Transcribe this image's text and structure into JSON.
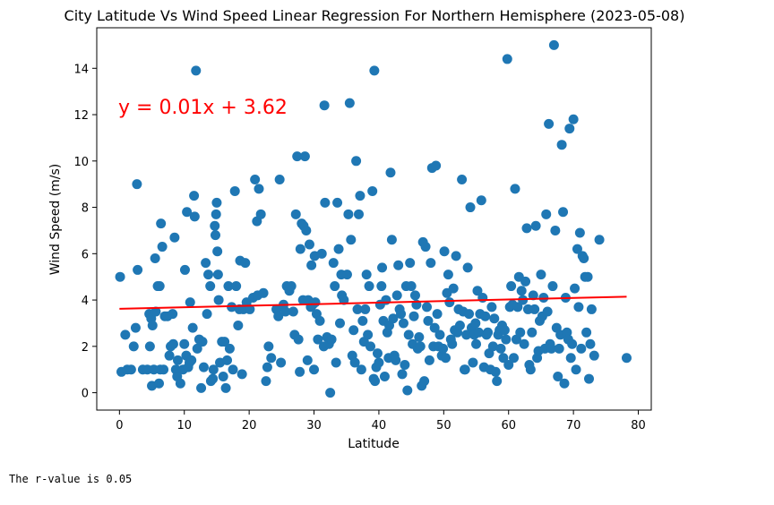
{
  "chart_data": {
    "type": "scatter",
    "title": "City Latitude Vs Wind Speed Linear Regression For Northern Hemisphere (2023-05-08)",
    "xlabel": "Latitude",
    "ylabel": "Wind Speed (m/s)",
    "xlim": [
      -3.5,
      82
    ],
    "ylim": [
      -0.75,
      15.75
    ],
    "x_ticks": [
      0,
      10,
      20,
      30,
      40,
      50,
      60,
      70,
      80
    ],
    "y_ticks": [
      0,
      2,
      4,
      6,
      8,
      10,
      12,
      14
    ],
    "grid": false,
    "point_color": "#1f77b4",
    "line_color": "#ff0000",
    "regression": {
      "equation": "y = 0.01x + 3.62",
      "slope": 0.0067,
      "intercept": 3.62,
      "x_range": [
        0,
        78.2
      ]
    },
    "points": [
      [
        0.1,
        5.0
      ],
      [
        0.3,
        0.9
      ],
      [
        0.9,
        2.5
      ],
      [
        1.2,
        1.0
      ],
      [
        1.8,
        1.0
      ],
      [
        2.2,
        2.0
      ],
      [
        2.5,
        2.8
      ],
      [
        2.7,
        9.0
      ],
      [
        2.8,
        5.3
      ],
      [
        3.6,
        1.0
      ],
      [
        4.3,
        1.0
      ],
      [
        4.6,
        3.4
      ],
      [
        4.7,
        2.0
      ],
      [
        4.9,
        3.2
      ],
      [
        5.0,
        0.3
      ],
      [
        5.1,
        2.9
      ],
      [
        5.3,
        1.0
      ],
      [
        5.5,
        5.8
      ],
      [
        5.6,
        3.5
      ],
      [
        5.9,
        4.6
      ],
      [
        6.1,
        0.4
      ],
      [
        6.2,
        4.6
      ],
      [
        6.3,
        1.0
      ],
      [
        6.4,
        7.3
      ],
      [
        6.6,
        6.3
      ],
      [
        6.8,
        1.0
      ],
      [
        7.0,
        3.3
      ],
      [
        7.4,
        3.3
      ],
      [
        7.7,
        1.6
      ],
      [
        7.9,
        2.0
      ],
      [
        8.2,
        3.4
      ],
      [
        8.3,
        2.1
      ],
      [
        8.5,
        6.7
      ],
      [
        8.7,
        1.0
      ],
      [
        8.9,
        0.7
      ],
      [
        9.0,
        1.4
      ],
      [
        9.4,
        0.4
      ],
      [
        9.8,
        1.0
      ],
      [
        10.0,
        2.1
      ],
      [
        10.1,
        5.3
      ],
      [
        10.3,
        1.6
      ],
      [
        10.4,
        7.8
      ],
      [
        10.6,
        1.1
      ],
      [
        10.8,
        1.3
      ],
      [
        10.9,
        3.9
      ],
      [
        11.1,
        1.4
      ],
      [
        11.3,
        2.8
      ],
      [
        11.5,
        8.5
      ],
      [
        11.6,
        7.6
      ],
      [
        11.8,
        13.9
      ],
      [
        12.0,
        1.9
      ],
      [
        12.3,
        2.3
      ],
      [
        12.6,
        0.2
      ],
      [
        12.8,
        2.2
      ],
      [
        13.0,
        1.1
      ],
      [
        13.3,
        5.6
      ],
      [
        13.5,
        3.4
      ],
      [
        13.7,
        5.1
      ],
      [
        14.0,
        4.6
      ],
      [
        14.1,
        0.5
      ],
      [
        14.4,
        0.6
      ],
      [
        14.5,
        1.0
      ],
      [
        14.7,
        7.2
      ],
      [
        14.8,
        6.8
      ],
      [
        14.9,
        7.7
      ],
      [
        15.0,
        8.2
      ],
      [
        15.1,
        6.1
      ],
      [
        15.2,
        5.1
      ],
      [
        15.3,
        4.0
      ],
      [
        15.5,
        1.3
      ],
      [
        15.8,
        2.2
      ],
      [
        16.0,
        0.7
      ],
      [
        16.2,
        2.2
      ],
      [
        16.4,
        0.2
      ],
      [
        16.6,
        1.4
      ],
      [
        16.8,
        4.6
      ],
      [
        17.0,
        1.9
      ],
      [
        17.3,
        3.7
      ],
      [
        17.5,
        1.0
      ],
      [
        17.8,
        8.7
      ],
      [
        18.0,
        4.6
      ],
      [
        18.3,
        2.9
      ],
      [
        18.5,
        3.6
      ],
      [
        18.6,
        5.7
      ],
      [
        18.9,
        0.8
      ],
      [
        19.1,
        3.6
      ],
      [
        19.4,
        5.6
      ],
      [
        19.6,
        3.9
      ],
      [
        20.1,
        3.6
      ],
      [
        20.6,
        4.1
      ],
      [
        20.9,
        9.2
      ],
      [
        21.2,
        7.4
      ],
      [
        21.3,
        4.2
      ],
      [
        21.5,
        8.8
      ],
      [
        21.8,
        7.7
      ],
      [
        22.2,
        4.3
      ],
      [
        22.6,
        0.5
      ],
      [
        22.8,
        1.1
      ],
      [
        23.0,
        2.0
      ],
      [
        23.4,
        1.5
      ],
      [
        24.2,
        3.6
      ],
      [
        24.5,
        3.3
      ],
      [
        24.7,
        9.2
      ],
      [
        24.9,
        1.3
      ],
      [
        25.3,
        3.8
      ],
      [
        25.6,
        3.5
      ],
      [
        25.8,
        4.6
      ],
      [
        26.2,
        4.4
      ],
      [
        26.5,
        4.6
      ],
      [
        26.8,
        3.5
      ],
      [
        27.0,
        2.5
      ],
      [
        27.2,
        7.7
      ],
      [
        27.4,
        10.2
      ],
      [
        27.6,
        2.3
      ],
      [
        27.8,
        0.9
      ],
      [
        27.9,
        6.2
      ],
      [
        28.1,
        7.3
      ],
      [
        28.3,
        4.0
      ],
      [
        28.4,
        7.2
      ],
      [
        28.6,
        10.2
      ],
      [
        28.8,
        7.0
      ],
      [
        29.0,
        1.4
      ],
      [
        29.1,
        4.0
      ],
      [
        29.3,
        6.4
      ],
      [
        29.5,
        3.7
      ],
      [
        29.6,
        5.5
      ],
      [
        29.8,
        3.8
      ],
      [
        30.0,
        1.0
      ],
      [
        30.1,
        5.9
      ],
      [
        30.2,
        3.9
      ],
      [
        30.4,
        3.4
      ],
      [
        30.6,
        2.3
      ],
      [
        30.9,
        3.1
      ],
      [
        31.2,
        6.0
      ],
      [
        31.5,
        2.0
      ],
      [
        31.6,
        12.4
      ],
      [
        31.7,
        8.2
      ],
      [
        32.0,
        2.4
      ],
      [
        32.3,
        2.1
      ],
      [
        32.5,
        0.0
      ],
      [
        32.7,
        2.3
      ],
      [
        33.0,
        5.6
      ],
      [
        33.2,
        4.6
      ],
      [
        33.4,
        1.3
      ],
      [
        33.6,
        8.2
      ],
      [
        33.8,
        6.2
      ],
      [
        34.0,
        3.0
      ],
      [
        34.2,
        5.1
      ],
      [
        34.3,
        4.2
      ],
      [
        34.6,
        4.0
      ],
      [
        35.1,
        5.1
      ],
      [
        35.3,
        7.7
      ],
      [
        35.5,
        12.5
      ],
      [
        35.7,
        6.6
      ],
      [
        35.9,
        1.6
      ],
      [
        36.1,
        2.7
      ],
      [
        36.3,
        1.3
      ],
      [
        36.5,
        10.0
      ],
      [
        36.7,
        3.6
      ],
      [
        36.9,
        7.7
      ],
      [
        37.1,
        8.5
      ],
      [
        37.3,
        1.0
      ],
      [
        37.5,
        3.1
      ],
      [
        37.7,
        2.2
      ],
      [
        37.9,
        3.6
      ],
      [
        38.1,
        5.1
      ],
      [
        38.3,
        2.5
      ],
      [
        38.5,
        4.6
      ],
      [
        38.7,
        2.0
      ],
      [
        39.0,
        8.7
      ],
      [
        39.2,
        0.6
      ],
      [
        39.3,
        13.9
      ],
      [
        39.4,
        0.5
      ],
      [
        39.6,
        1.1
      ],
      [
        39.8,
        1.7
      ],
      [
        40.0,
        1.3
      ],
      [
        40.2,
        3.8
      ],
      [
        40.4,
        4.6
      ],
      [
        40.5,
        5.4
      ],
      [
        40.7,
        3.1
      ],
      [
        40.9,
        0.7
      ],
      [
        41.1,
        4.0
      ],
      [
        41.3,
        2.6
      ],
      [
        41.5,
        1.5
      ],
      [
        41.6,
        2.9
      ],
      [
        41.8,
        9.5
      ],
      [
        42.0,
        6.6
      ],
      [
        42.2,
        3.2
      ],
      [
        42.4,
        1.6
      ],
      [
        42.6,
        1.4
      ],
      [
        42.8,
        4.2
      ],
      [
        43.0,
        5.5
      ],
      [
        43.2,
        3.6
      ],
      [
        43.4,
        3.4
      ],
      [
        43.6,
        0.8
      ],
      [
        43.8,
        3.0
      ],
      [
        44.0,
        1.2
      ],
      [
        44.2,
        4.6
      ],
      [
        44.4,
        0.1
      ],
      [
        44.6,
        2.5
      ],
      [
        44.8,
        5.6
      ],
      [
        45.0,
        4.6
      ],
      [
        45.2,
        2.1
      ],
      [
        45.4,
        3.3
      ],
      [
        45.6,
        4.2
      ],
      [
        45.8,
        3.8
      ],
      [
        46.0,
        1.9
      ],
      [
        46.2,
        2.4
      ],
      [
        46.4,
        2.0
      ],
      [
        46.6,
        0.3
      ],
      [
        46.8,
        6.5
      ],
      [
        47.0,
        0.5
      ],
      [
        47.2,
        6.3
      ],
      [
        47.4,
        3.7
      ],
      [
        47.6,
        3.1
      ],
      [
        47.8,
        1.4
      ],
      [
        48.0,
        5.6
      ],
      [
        48.2,
        9.7
      ],
      [
        48.4,
        2.0
      ],
      [
        48.6,
        2.8
      ],
      [
        48.8,
        9.8
      ],
      [
        49.0,
        3.4
      ],
      [
        49.2,
        2.0
      ],
      [
        49.4,
        2.5
      ],
      [
        49.7,
        1.6
      ],
      [
        49.9,
        1.9
      ],
      [
        50.1,
        6.1
      ],
      [
        50.3,
        1.5
      ],
      [
        50.5,
        4.3
      ],
      [
        50.7,
        5.1
      ],
      [
        50.9,
        3.9
      ],
      [
        51.1,
        2.3
      ],
      [
        51.3,
        2.1
      ],
      [
        51.5,
        4.5
      ],
      [
        51.7,
        2.7
      ],
      [
        51.9,
        5.9
      ],
      [
        52.1,
        2.6
      ],
      [
        52.3,
        3.6
      ],
      [
        52.5,
        2.9
      ],
      [
        52.8,
        9.2
      ],
      [
        53.0,
        3.5
      ],
      [
        53.2,
        1.0
      ],
      [
        53.3,
        1.0
      ],
      [
        53.5,
        2.5
      ],
      [
        53.7,
        5.4
      ],
      [
        53.9,
        3.4
      ],
      [
        54.1,
        8.0
      ],
      [
        54.3,
        2.8
      ],
      [
        54.5,
        1.3
      ],
      [
        54.7,
        2.5
      ],
      [
        54.9,
        3.0
      ],
      [
        55.0,
        2.1
      ],
      [
        55.2,
        4.4
      ],
      [
        55.4,
        2.6
      ],
      [
        55.6,
        3.4
      ],
      [
        55.8,
        8.3
      ],
      [
        56.0,
        4.1
      ],
      [
        56.2,
        1.1
      ],
      [
        56.4,
        3.3
      ],
      [
        56.6,
        2.5
      ],
      [
        56.8,
        2.6
      ],
      [
        57.0,
        1.7
      ],
      [
        57.2,
        1.0
      ],
      [
        57.4,
        3.7
      ],
      [
        57.6,
        2.0
      ],
      [
        57.8,
        3.2
      ],
      [
        58.0,
        0.9
      ],
      [
        58.2,
        0.5
      ],
      [
        58.4,
        2.5
      ],
      [
        58.6,
        2.7
      ],
      [
        58.8,
        1.9
      ],
      [
        59.0,
        2.9
      ],
      [
        59.2,
        1.5
      ],
      [
        59.4,
        2.7
      ],
      [
        59.6,
        2.3
      ],
      [
        59.8,
        14.4
      ],
      [
        60.0,
        1.2
      ],
      [
        60.2,
        3.7
      ],
      [
        60.4,
        4.6
      ],
      [
        60.6,
        3.8
      ],
      [
        60.8,
        1.5
      ],
      [
        61.0,
        8.8
      ],
      [
        61.2,
        2.3
      ],
      [
        61.4,
        3.7
      ],
      [
        61.6,
        5.0
      ],
      [
        61.8,
        2.6
      ],
      [
        62.0,
        4.4
      ],
      [
        62.2,
        4.0
      ],
      [
        62.4,
        2.1
      ],
      [
        62.6,
        4.8
      ],
      [
        62.8,
        7.1
      ],
      [
        63.0,
        3.6
      ],
      [
        63.2,
        1.2
      ],
      [
        63.4,
        1.0
      ],
      [
        63.6,
        2.6
      ],
      [
        63.8,
        4.2
      ],
      [
        64.0,
        3.6
      ],
      [
        64.2,
        7.2
      ],
      [
        64.4,
        1.5
      ],
      [
        64.6,
        1.8
      ],
      [
        64.8,
        3.1
      ],
      [
        65.0,
        5.1
      ],
      [
        65.2,
        3.3
      ],
      [
        65.4,
        4.1
      ],
      [
        65.6,
        1.9
      ],
      [
        65.8,
        7.7
      ],
      [
        66.0,
        3.5
      ],
      [
        66.2,
        11.6
      ],
      [
        66.4,
        2.1
      ],
      [
        66.6,
        1.9
      ],
      [
        66.8,
        4.6
      ],
      [
        67.0,
        15.0
      ],
      [
        67.2,
        7.0
      ],
      [
        67.4,
        2.8
      ],
      [
        67.6,
        0.7
      ],
      [
        67.8,
        1.9
      ],
      [
        68.0,
        2.5
      ],
      [
        68.2,
        10.7
      ],
      [
        68.4,
        7.8
      ],
      [
        68.6,
        0.4
      ],
      [
        68.8,
        4.1
      ],
      [
        69.0,
        2.6
      ],
      [
        69.2,
        2.3
      ],
      [
        69.4,
        11.4
      ],
      [
        69.6,
        1.5
      ],
      [
        69.8,
        2.1
      ],
      [
        70.0,
        11.8
      ],
      [
        70.2,
        4.5
      ],
      [
        70.4,
        1.0
      ],
      [
        70.6,
        6.2
      ],
      [
        70.8,
        3.7
      ],
      [
        71.0,
        6.9
      ],
      [
        71.2,
        1.9
      ],
      [
        71.4,
        5.9
      ],
      [
        71.6,
        5.8
      ],
      [
        71.8,
        5.0
      ],
      [
        72.0,
        2.6
      ],
      [
        72.2,
        5.0
      ],
      [
        72.4,
        0.6
      ],
      [
        72.6,
        2.1
      ],
      [
        72.8,
        3.6
      ],
      [
        73.2,
        1.6
      ],
      [
        74.0,
        6.6
      ],
      [
        78.2,
        1.5
      ]
    ]
  },
  "footer": {
    "r_value_text": "The r-value is 0.05"
  }
}
